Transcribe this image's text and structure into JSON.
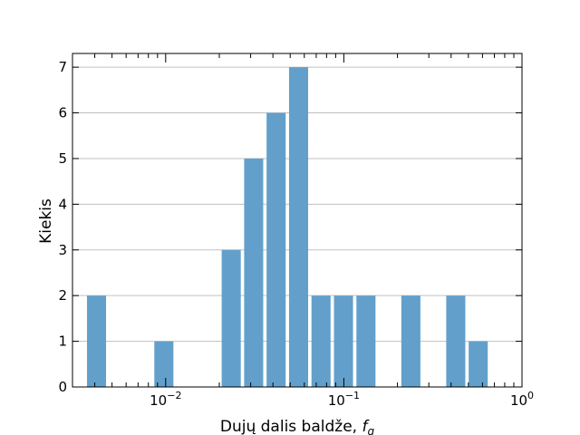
{
  "chart_data": {
    "type": "bar",
    "xscale": "log",
    "xlim": [
      0.003,
      1.0
    ],
    "ylim": [
      0,
      7.3
    ],
    "xlabel": "Dujų dalis baldže, ",
    "xlabel_italic": "f",
    "xlabel_sub": "g",
    "ylabel": "Kiekis",
    "grid": "y",
    "legend": "none",
    "bar_color": "#62a0cb",
    "bars": [
      {
        "x0": 0.00354,
        "x1": 0.00473,
        "value": 2
      },
      {
        "x0": 0.00473,
        "x1": 0.00632,
        "value": 0
      },
      {
        "x0": 0.00632,
        "x1": 0.00845,
        "value": 0
      },
      {
        "x0": 0.00845,
        "x1": 0.0113,
        "value": 1
      },
      {
        "x0": 0.0113,
        "x1": 0.0151,
        "value": 0
      },
      {
        "x0": 0.0151,
        "x1": 0.02018,
        "value": 0
      },
      {
        "x0": 0.02018,
        "x1": 0.02698,
        "value": 3
      },
      {
        "x0": 0.02698,
        "x1": 0.03606,
        "value": 5
      },
      {
        "x0": 0.03606,
        "x1": 0.0482,
        "value": 6
      },
      {
        "x0": 0.0482,
        "x1": 0.06443,
        "value": 7
      },
      {
        "x0": 0.06443,
        "x1": 0.08612,
        "value": 2
      },
      {
        "x0": 0.08612,
        "x1": 0.1151,
        "value": 2
      },
      {
        "x0": 0.1151,
        "x1": 0.1539,
        "value": 2
      },
      {
        "x0": 0.1539,
        "x1": 0.2057,
        "value": 0
      },
      {
        "x0": 0.2057,
        "x1": 0.2749,
        "value": 2
      },
      {
        "x0": 0.2749,
        "x1": 0.3675,
        "value": 0
      },
      {
        "x0": 0.3675,
        "x1": 0.4912,
        "value": 2
      },
      {
        "x0": 0.4912,
        "x1": 0.6565,
        "value": 1
      }
    ],
    "bar_width_fraction": 0.85,
    "yticks": [
      0,
      1,
      2,
      3,
      4,
      5,
      6,
      7
    ],
    "xticks": [
      {
        "value": 0.01,
        "base": "10",
        "exp": "−2"
      },
      {
        "value": 0.1,
        "base": "10",
        "exp": "−1"
      },
      {
        "value": 1.0,
        "base": "10",
        "exp": "0"
      }
    ]
  }
}
